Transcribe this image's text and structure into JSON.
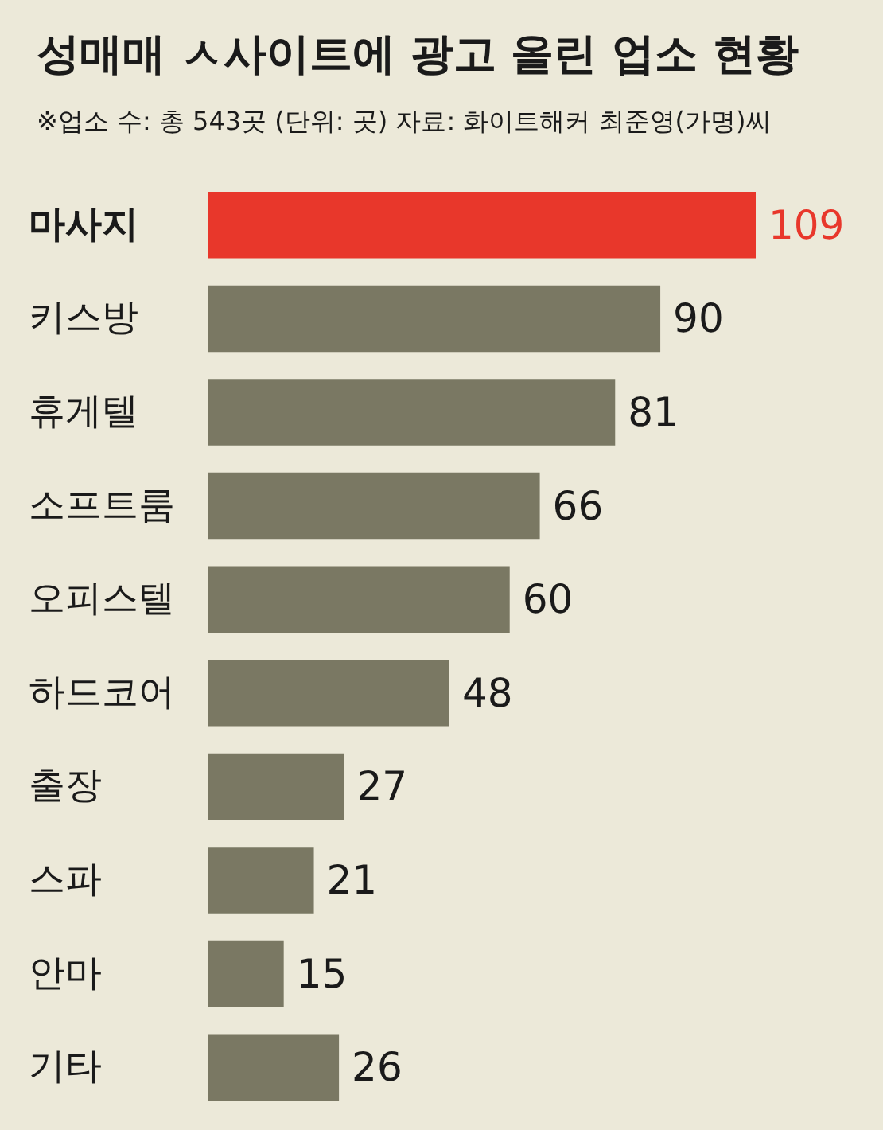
{
  "chart_data": {
    "type": "bar",
    "orientation": "horizontal",
    "title": "성매매 ㅅ사이트에 광고 올린 업소 현황",
    "subtitle": "※업소 수: 총 543곳 (단위: 곳) 자료: 화이트해커 최준영(가명)씨",
    "categories": [
      "마사지",
      "키스방",
      "휴게텔",
      "소프트룸",
      "오피스텔",
      "하드코어",
      "출장",
      "스파",
      "안마",
      "기타"
    ],
    "values": [
      109,
      90,
      81,
      66,
      60,
      48,
      27,
      21,
      15,
      26
    ],
    "colors": [
      "#e8372b",
      "#7a7863",
      "#7a7863",
      "#7a7863",
      "#7a7863",
      "#7a7863",
      "#7a7863",
      "#7a7863",
      "#7a7863",
      "#7a7863"
    ],
    "data_labels": true
  }
}
